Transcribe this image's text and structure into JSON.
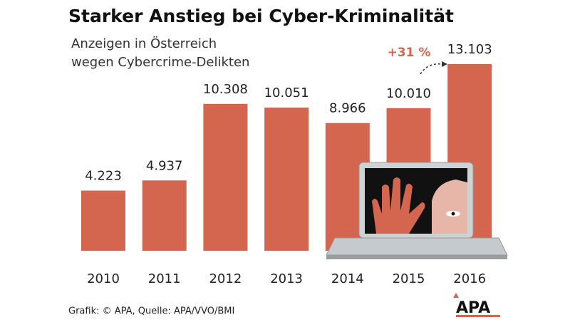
{
  "chart_data": {
    "type": "bar",
    "title": "Starker Anstieg bei Cyber-Kriminalität",
    "subtitle": [
      "Anzeigen in Österreich",
      "wegen Cybercrime-Delikten"
    ],
    "categories": [
      "2010",
      "2011",
      "2012",
      "2013",
      "2014",
      "2015",
      "2016"
    ],
    "values": [
      4223,
      4937,
      10308,
      10051,
      8966,
      10010,
      13103
    ],
    "value_labels": [
      "4.223",
      "4.937",
      "10.308",
      "10.051",
      "8.966",
      "10.010",
      "13.103"
    ],
    "color": "#d4654f",
    "annotation": "+31 %",
    "source": "Grafik: © APA, Quelle: APA/VVO/BMI",
    "logo": "APA"
  }
}
